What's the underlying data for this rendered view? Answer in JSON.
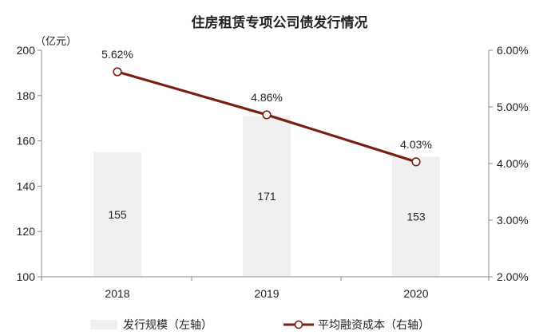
{
  "chart_data": {
    "type": "bar+line",
    "title": "住房租赁专项公司债发行情况",
    "categories": [
      "2018",
      "2019",
      "2020"
    ],
    "left_axis": {
      "unit_label": "（亿元）",
      "ylim": [
        100,
        200
      ],
      "ticks": [
        "100",
        "120",
        "140",
        "160",
        "180",
        "200"
      ]
    },
    "right_axis": {
      "ylim": [
        2.0,
        6.0
      ],
      "ticks": [
        "2.00%",
        "3.00%",
        "4.00%",
        "5.00%",
        "6.00%"
      ]
    },
    "series": [
      {
        "name": "发行规模（左轴）",
        "kind": "bar",
        "axis": "left",
        "values": [
          155,
          171,
          153
        ],
        "labels": [
          "155",
          "171",
          "153"
        ],
        "color": "#f0f0f0"
      },
      {
        "name": "平均融资成本（右轴）",
        "kind": "line",
        "axis": "right",
        "values": [
          5.62,
          4.86,
          4.03
        ],
        "labels": [
          "5.62%",
          "4.86%",
          "4.03%"
        ],
        "color": "#7b1e12"
      }
    ],
    "grid": false,
    "legend_position": "bottom"
  }
}
